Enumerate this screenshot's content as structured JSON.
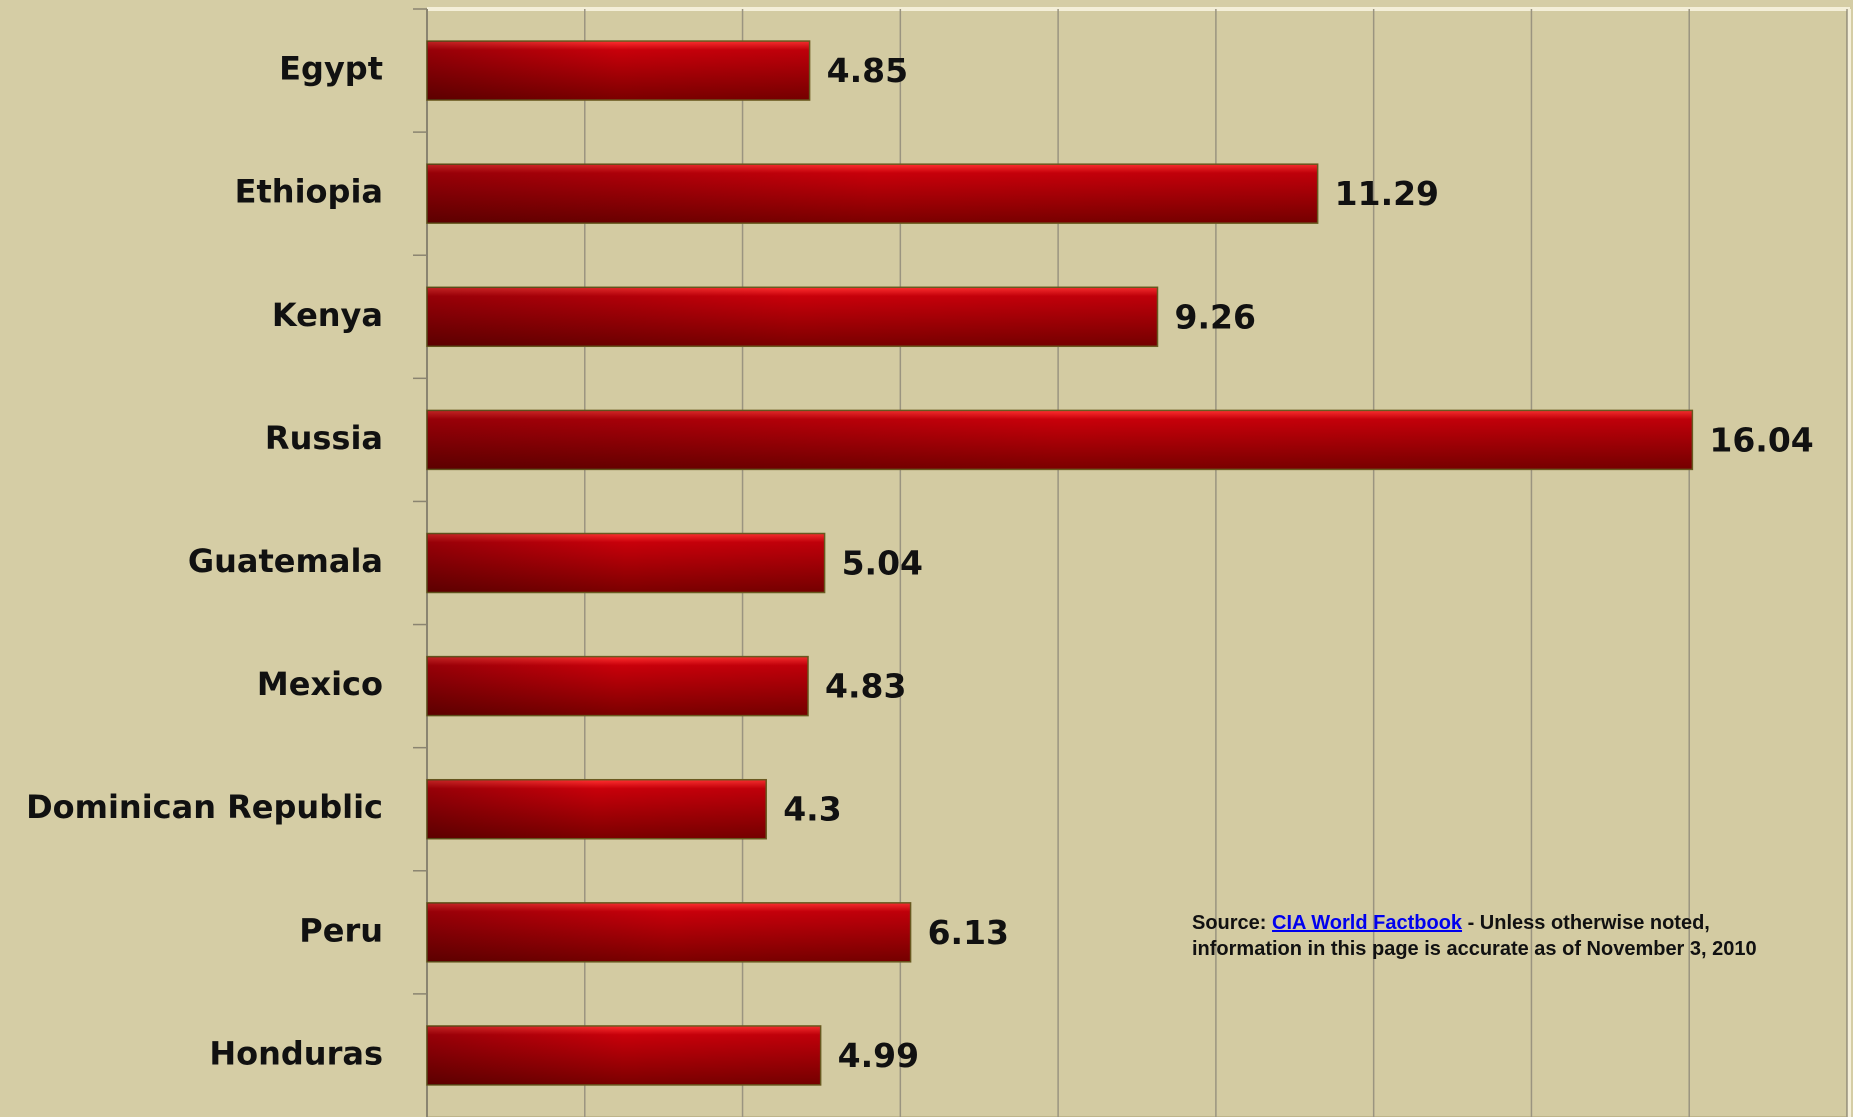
{
  "chart_data": {
    "type": "bar",
    "orientation": "horizontal",
    "categories": [
      "Egypt",
      "Ethiopia",
      "Kenya",
      "Russia",
      "Guatemala",
      "Mexico",
      "Dominican Republic",
      "Peru",
      "Honduras"
    ],
    "values": [
      4.85,
      11.29,
      9.26,
      16.04,
      5.04,
      4.83,
      4.3,
      6.13,
      4.99
    ],
    "color": "#c8000a",
    "xlim": [
      0,
      18
    ],
    "xticks": [
      0,
      2,
      4,
      6,
      8,
      10,
      12,
      14,
      16,
      18
    ],
    "grid": true,
    "source": {
      "prefix": "Source:",
      "link": "CIA World Factbook",
      "text": "- Unless otherwise noted, information in this page is accurate as of November 3, 2010"
    }
  }
}
